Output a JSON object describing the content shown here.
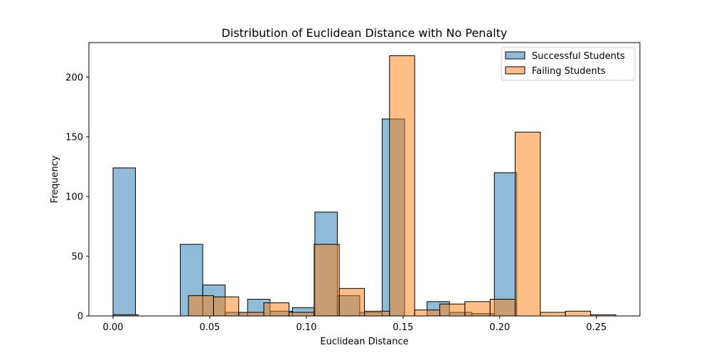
{
  "chart_data": {
    "type": "bar",
    "title": "Distribution of Euclidean Distance with No Penalty",
    "xlabel": "Euclidean Distance",
    "ylabel": "Frequency",
    "xlim": [
      -0.0125,
      0.2725
    ],
    "ylim": [
      0,
      229
    ],
    "xticks": [
      0.0,
      0.05,
      0.1,
      0.15,
      0.2,
      0.25
    ],
    "xtick_labels": [
      "0.00",
      "0.05",
      "0.10",
      "0.15",
      "0.20",
      "0.25"
    ],
    "yticks": [
      0,
      50,
      100,
      150,
      200
    ],
    "ytick_labels": [
      "0",
      "50",
      "100",
      "150",
      "200"
    ],
    "grid": false,
    "legend_position": "upper right",
    "series": [
      {
        "name": "Successful Students",
        "color": "#1f77b4",
        "bins": [
          {
            "x0": 0.0,
            "x1": 0.0116,
            "count": 124
          },
          {
            "x0": 0.0116,
            "x1": 0.0232,
            "count": 0
          },
          {
            "x0": 0.0232,
            "x1": 0.0348,
            "count": 0
          },
          {
            "x0": 0.0348,
            "x1": 0.0464,
            "count": 60
          },
          {
            "x0": 0.0464,
            "x1": 0.058,
            "count": 26
          },
          {
            "x0": 0.058,
            "x1": 0.0696,
            "count": 3
          },
          {
            "x0": 0.0696,
            "x1": 0.0812,
            "count": 14
          },
          {
            "x0": 0.0812,
            "x1": 0.0928,
            "count": 4
          },
          {
            "x0": 0.0928,
            "x1": 0.1044,
            "count": 7
          },
          {
            "x0": 0.1044,
            "x1": 0.116,
            "count": 87
          },
          {
            "x0": 0.116,
            "x1": 0.1276,
            "count": 17
          },
          {
            "x0": 0.1276,
            "x1": 0.1392,
            "count": 3
          },
          {
            "x0": 0.1392,
            "x1": 0.1508,
            "count": 165
          },
          {
            "x0": 0.1508,
            "x1": 0.1624,
            "count": 0
          },
          {
            "x0": 0.1624,
            "x1": 0.174,
            "count": 12
          },
          {
            "x0": 0.174,
            "x1": 0.1856,
            "count": 3
          },
          {
            "x0": 0.1856,
            "x1": 0.1972,
            "count": 2
          },
          {
            "x0": 0.1972,
            "x1": 0.2088,
            "count": 120
          },
          {
            "x0": 0.2088,
            "x1": 0.2204,
            "count": 0
          },
          {
            "x0": 0.2204,
            "x1": 0.232,
            "count": 0
          }
        ]
      },
      {
        "name": "Failing Students",
        "color": "#ff7f0e",
        "bins": [
          {
            "x0": 0.0,
            "x1": 0.013,
            "count": 1
          },
          {
            "x0": 0.013,
            "x1": 0.026,
            "count": 0
          },
          {
            "x0": 0.026,
            "x1": 0.039,
            "count": 0
          },
          {
            "x0": 0.039,
            "x1": 0.052,
            "count": 17
          },
          {
            "x0": 0.052,
            "x1": 0.065,
            "count": 16
          },
          {
            "x0": 0.065,
            "x1": 0.078,
            "count": 3
          },
          {
            "x0": 0.078,
            "x1": 0.091,
            "count": 11
          },
          {
            "x0": 0.091,
            "x1": 0.104,
            "count": 3
          },
          {
            "x0": 0.104,
            "x1": 0.117,
            "count": 60
          },
          {
            "x0": 0.117,
            "x1": 0.13,
            "count": 23
          },
          {
            "x0": 0.13,
            "x1": 0.143,
            "count": 4
          },
          {
            "x0": 0.143,
            "x1": 0.156,
            "count": 218
          },
          {
            "x0": 0.156,
            "x1": 0.169,
            "count": 5
          },
          {
            "x0": 0.169,
            "x1": 0.182,
            "count": 10
          },
          {
            "x0": 0.182,
            "x1": 0.195,
            "count": 12
          },
          {
            "x0": 0.195,
            "x1": 0.208,
            "count": 14
          },
          {
            "x0": 0.208,
            "x1": 0.221,
            "count": 154
          },
          {
            "x0": 0.221,
            "x1": 0.234,
            "count": 3
          },
          {
            "x0": 0.234,
            "x1": 0.247,
            "count": 4
          },
          {
            "x0": 0.247,
            "x1": 0.26,
            "count": 1
          }
        ]
      }
    ]
  }
}
